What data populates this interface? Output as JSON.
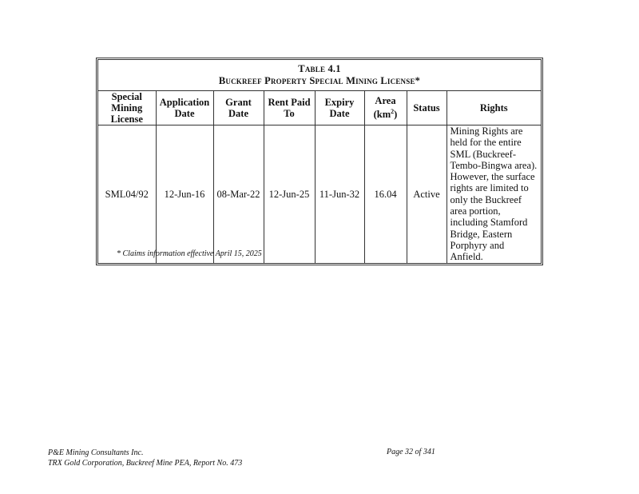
{
  "table": {
    "number": "Table 4.1",
    "title": "Buckreef Property Special Mining License*",
    "headers": [
      "Special Mining License",
      "Application Date",
      "Grant Date",
      "Rent Paid To",
      "Expiry Date",
      "Area",
      "Status",
      "Rights"
    ],
    "area_unit": "(km",
    "area_unit_sup": "2",
    "area_unit_close": ")",
    "rows": [
      {
        "license": "SML04/92",
        "application_date": "12-Jun-16",
        "grant_date": "08-Mar-22",
        "rent_paid_to": "12-Jun-25",
        "expiry_date": "11-Jun-32",
        "area": "16.04",
        "status": "Active",
        "rights": "Mining Rights are held for the entire SML (Buckreef-Tembo-Bingwa area). However, the surface rights are limited to only the Buckreef area portion, including Stamford Bridge, Eastern Porphyry and Anfield."
      }
    ],
    "footnote": "* Claims information effective April 15, 2025"
  },
  "footer": {
    "company": "P&E Mining Consultants Inc.",
    "report": "TRX Gold Corporation, Buckreef Mine PEA, Report No. 473",
    "page": "Page 32 of 341"
  }
}
